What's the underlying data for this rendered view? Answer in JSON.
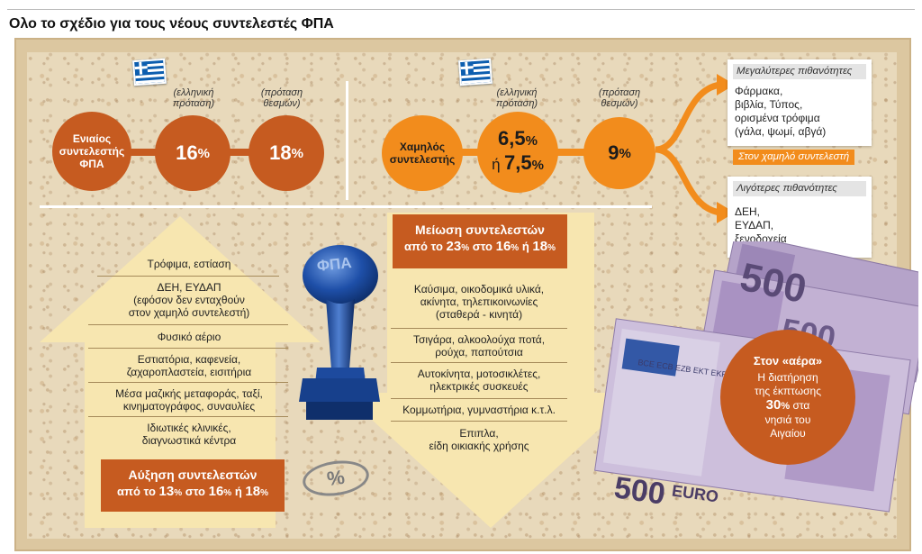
{
  "title": "Ολο το σχέδιο για τους νέους συντελεστές ΦΠΑ",
  "left_panel": {
    "note1": [
      "(ελληνική",
      "πρόταση)"
    ],
    "note2": [
      "(πρόταση",
      "θεσμών)"
    ],
    "label": [
      "Ενιαίος",
      "συντελεστής",
      "ΦΠΑ"
    ],
    "rate1": "16",
    "rate2": "18",
    "pct": "%"
  },
  "mid_panel": {
    "note1": [
      "(ελληνική",
      "πρόταση)"
    ],
    "note2": [
      "(πρόταση",
      "θεσμών)"
    ],
    "label": [
      "Χαμηλός",
      "συντελεστής"
    ],
    "rate1a": "6,5",
    "rate1b_prefix": "ή",
    "rate1b": "7,5",
    "rate2": "9",
    "pct": "%"
  },
  "right_panel": {
    "likely_head": "Μεγαλύτερες πιθανότητες",
    "likely_items": [
      "Φάρμακα,",
      "βιβλία, Τύπος,",
      "ορισμένα τρόφιμα",
      "(γάλα, ψωμί, αβγά)"
    ],
    "tag": "Στον χαμηλό συντελεστή",
    "unlikely_head": "Λιγότερες πιθανότητες",
    "unlikely_items": [
      "ΔΕΗ,",
      "ΕΥΔΑΠ,",
      "ξενοδοχεία"
    ]
  },
  "increase": {
    "items": [
      [
        "Τρόφιμα, εστίαση"
      ],
      [
        "ΔΕΗ, ΕΥΔΑΠ",
        "(εφόσον δεν ενταχθούν",
        "στον χαμηλό συντελεστή)"
      ],
      [
        "Φυσικό αέριο"
      ],
      [
        "Εστιατόρια, καφενεία,",
        "ζαχαροπλαστεία, εισιτήρια"
      ],
      [
        "Μέσα μαζικής μεταφοράς, ταξί,",
        "κινηματογράφος, συναυλίες"
      ],
      [
        "Ιδιωτικές κλινικές,",
        "διαγνωστικά κέντρα"
      ]
    ],
    "head1": "Αύξηση συντελεστών",
    "head2_parts": [
      "από το ",
      "13",
      "%",
      " στο ",
      "16",
      "%",
      " ή ",
      "18",
      "%"
    ]
  },
  "decrease": {
    "head1": "Μείωση συντελεστών",
    "head2_parts": [
      "από το ",
      "23",
      "%",
      " στο ",
      "16",
      "%",
      " ή ",
      "18",
      "%"
    ],
    "items": [
      [
        "Καύσιμα, οικοδομικά υλικά,",
        "ακίνητα, τηλεπικοινωνίες",
        "(σταθερά - κινητά)"
      ],
      [
        "Τσιγάρα, αλκοολούχα ποτά,",
        "ρούχα, παπούτσια"
      ],
      [
        "Αυτοκίνητα, μοτοσικλέτες,",
        "ηλεκτρικές συσκευές"
      ],
      [
        "Κομμωτήρια, γυμναστήρια κ.τ.λ."
      ],
      [
        "Επιπλα,",
        "είδη οικιακής χρήσης"
      ]
    ]
  },
  "stamp_text": "ΦΠΑ",
  "pct_badge": "%",
  "money": {
    "n1": "500",
    "n2": "500",
    "n3": "500",
    "euro": "EURO",
    "bce": "BCE ECB EZB EKT EKP"
  },
  "aera": {
    "head": "Στον «αέρα»",
    "lines": [
      "Η διατήρηση",
      "της έκπτωσης"
    ],
    "rate": "30",
    "pct": "%",
    "tail1": " στα",
    "tail2": [
      "νησιά του",
      "Αιγαίου"
    ]
  },
  "colors": {
    "dark_orange": "#c65b20",
    "orange": "#f28c1c",
    "cream": "#f7e6b0"
  }
}
